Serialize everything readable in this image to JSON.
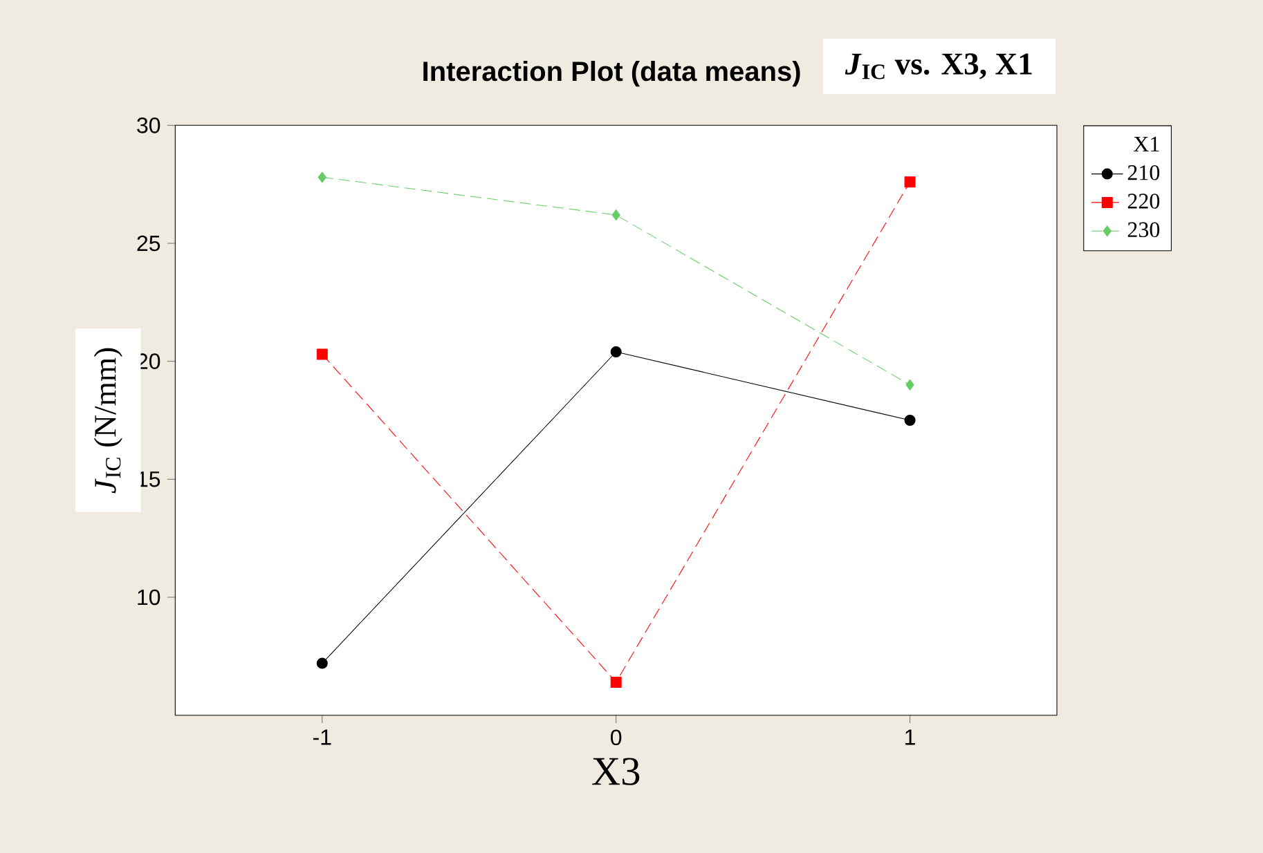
{
  "chart_data": {
    "type": "line",
    "title": "Interaction Plot (data means)",
    "subtitle": "*J*$_{IC}$ vs. X3, X1",
    "xlabel": "X3",
    "ylabel": "*J*$_{IC}$ (N/mm)",
    "legend_title": "X1",
    "legend": "right",
    "x": [
      -1,
      0,
      1
    ],
    "series": [
      {
        "name": "210",
        "color": "#000000",
        "values": [
          7.2,
          20.4,
          17.5
        ],
        "marker": "circle",
        "line_style": "solid"
      },
      {
        "name": "220",
        "color": "#ff0000",
        "values": [
          20.3,
          6.4,
          27.6
        ],
        "marker": "square",
        "line_style": "dashed"
      },
      {
        "name": "230",
        "color": "#66cc66",
        "values": [
          27.8,
          26.2,
          19.0
        ],
        "marker": "diamond",
        "line_style": "dashed"
      }
    ],
    "xlim": [
      -1.5,
      1.5
    ],
    "ylim": [
      5,
      30
    ],
    "xticks": [
      -1,
      0,
      1
    ],
    "yticks": [
      10,
      15,
      20,
      25,
      30
    ]
  }
}
